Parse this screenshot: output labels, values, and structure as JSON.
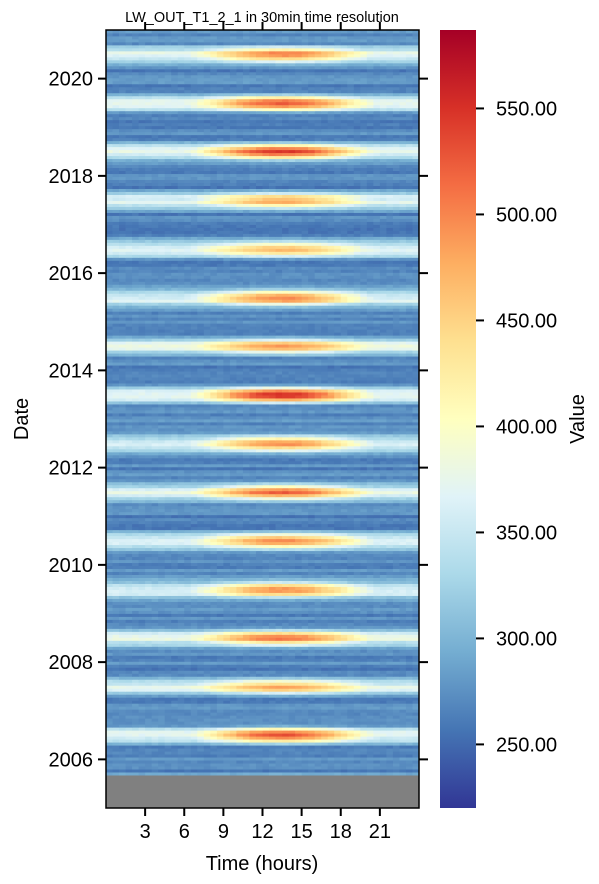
{
  "chart_data": {
    "type": "heatmap",
    "title": "LW_OUT_T1_2_1 in 30min time resolution",
    "xlabel": "Time (hours)",
    "ylabel": "Date",
    "colorbar_label": "Value",
    "x_range": [
      0,
      24
    ],
    "x_ticks": [
      3,
      6,
      9,
      12,
      15,
      18,
      21
    ],
    "y_range": [
      2005.0,
      2021.0
    ],
    "y_ticks": [
      2006,
      2008,
      2010,
      2012,
      2014,
      2016,
      2018,
      2020
    ],
    "color_range": [
      220,
      587
    ],
    "colorbar_ticks": [
      250,
      300,
      350,
      400,
      450,
      500,
      550
    ],
    "colormap": "RdYlBu_r",
    "missing_color": "#808080",
    "missing_data_before": 2005.7,
    "summer_peak_value_by_year": [
      {
        "year": 2006,
        "value": 530
      },
      {
        "year": 2007,
        "value": 475
      },
      {
        "year": 2008,
        "value": 500
      },
      {
        "year": 2009,
        "value": 505
      },
      {
        "year": 2010,
        "value": 500
      },
      {
        "year": 2011,
        "value": 515
      },
      {
        "year": 2012,
        "value": 505
      },
      {
        "year": 2013,
        "value": 555
      },
      {
        "year": 2014,
        "value": 475
      },
      {
        "year": 2015,
        "value": 510
      },
      {
        "year": 2016,
        "value": 470
      },
      {
        "year": 2017,
        "value": 480
      },
      {
        "year": 2018,
        "value": 540
      },
      {
        "year": 2019,
        "value": 520
      },
      {
        "year": 2020,
        "value": 500
      }
    ],
    "winter_min_value": 270,
    "night_summer_value": 370
  }
}
